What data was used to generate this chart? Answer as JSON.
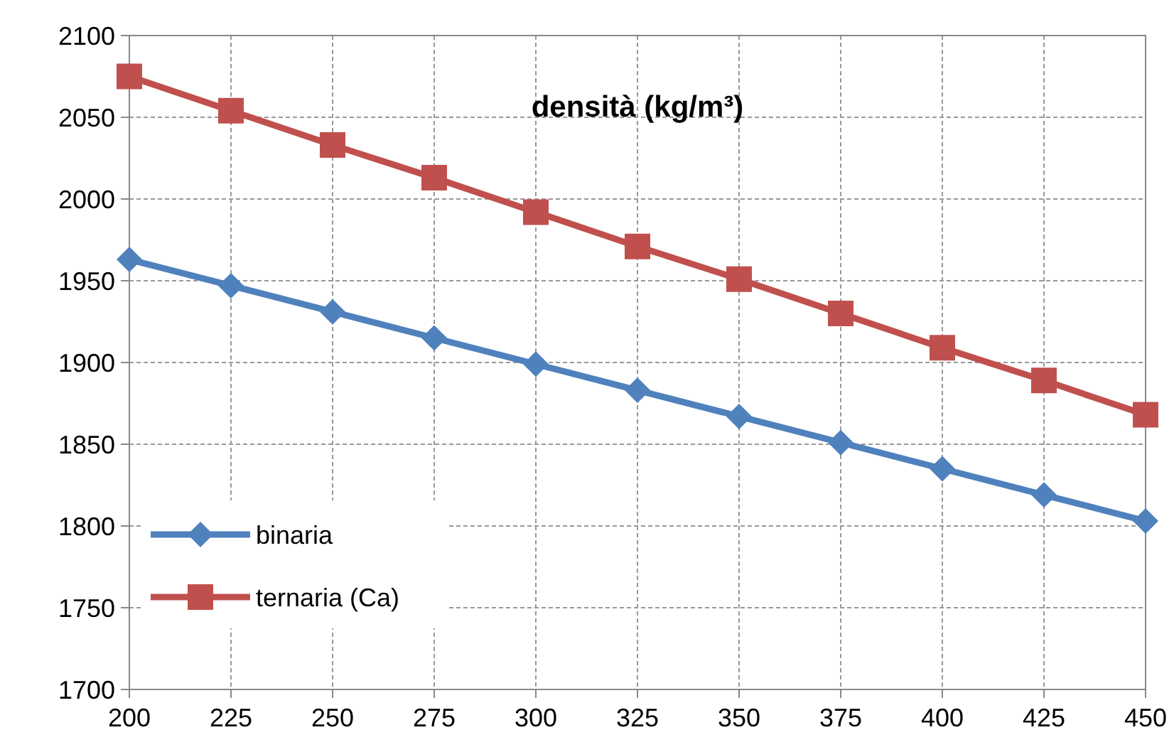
{
  "chart_data": {
    "type": "line",
    "title": "densità (kg/m³)",
    "x": [
      200,
      225,
      250,
      275,
      300,
      325,
      350,
      375,
      400,
      425,
      450
    ],
    "series": [
      {
        "name": "binaria",
        "color": "#4f81bd",
        "marker": "diamond",
        "values": [
          1963,
          1947,
          1931,
          1915,
          1899,
          1883,
          1867,
          1851,
          1835,
          1819,
          1803
        ]
      },
      {
        "name": "ternaria (Ca)",
        "color": "#c0504d",
        "marker": "square",
        "values": [
          2075,
          2054,
          2033,
          2013,
          1992,
          1971,
          1951,
          1930,
          1909,
          1889,
          1868
        ]
      }
    ],
    "xlim": [
      200,
      450
    ],
    "xticks": [
      200,
      225,
      250,
      275,
      300,
      325,
      350,
      375,
      400,
      425,
      450
    ],
    "ylim": [
      1700,
      2100
    ],
    "yticks": [
      1700,
      1750,
      1800,
      1850,
      1900,
      1950,
      2000,
      2050,
      2100
    ],
    "grid": true,
    "legend": "bottom left",
    "line_style": "solid"
  }
}
